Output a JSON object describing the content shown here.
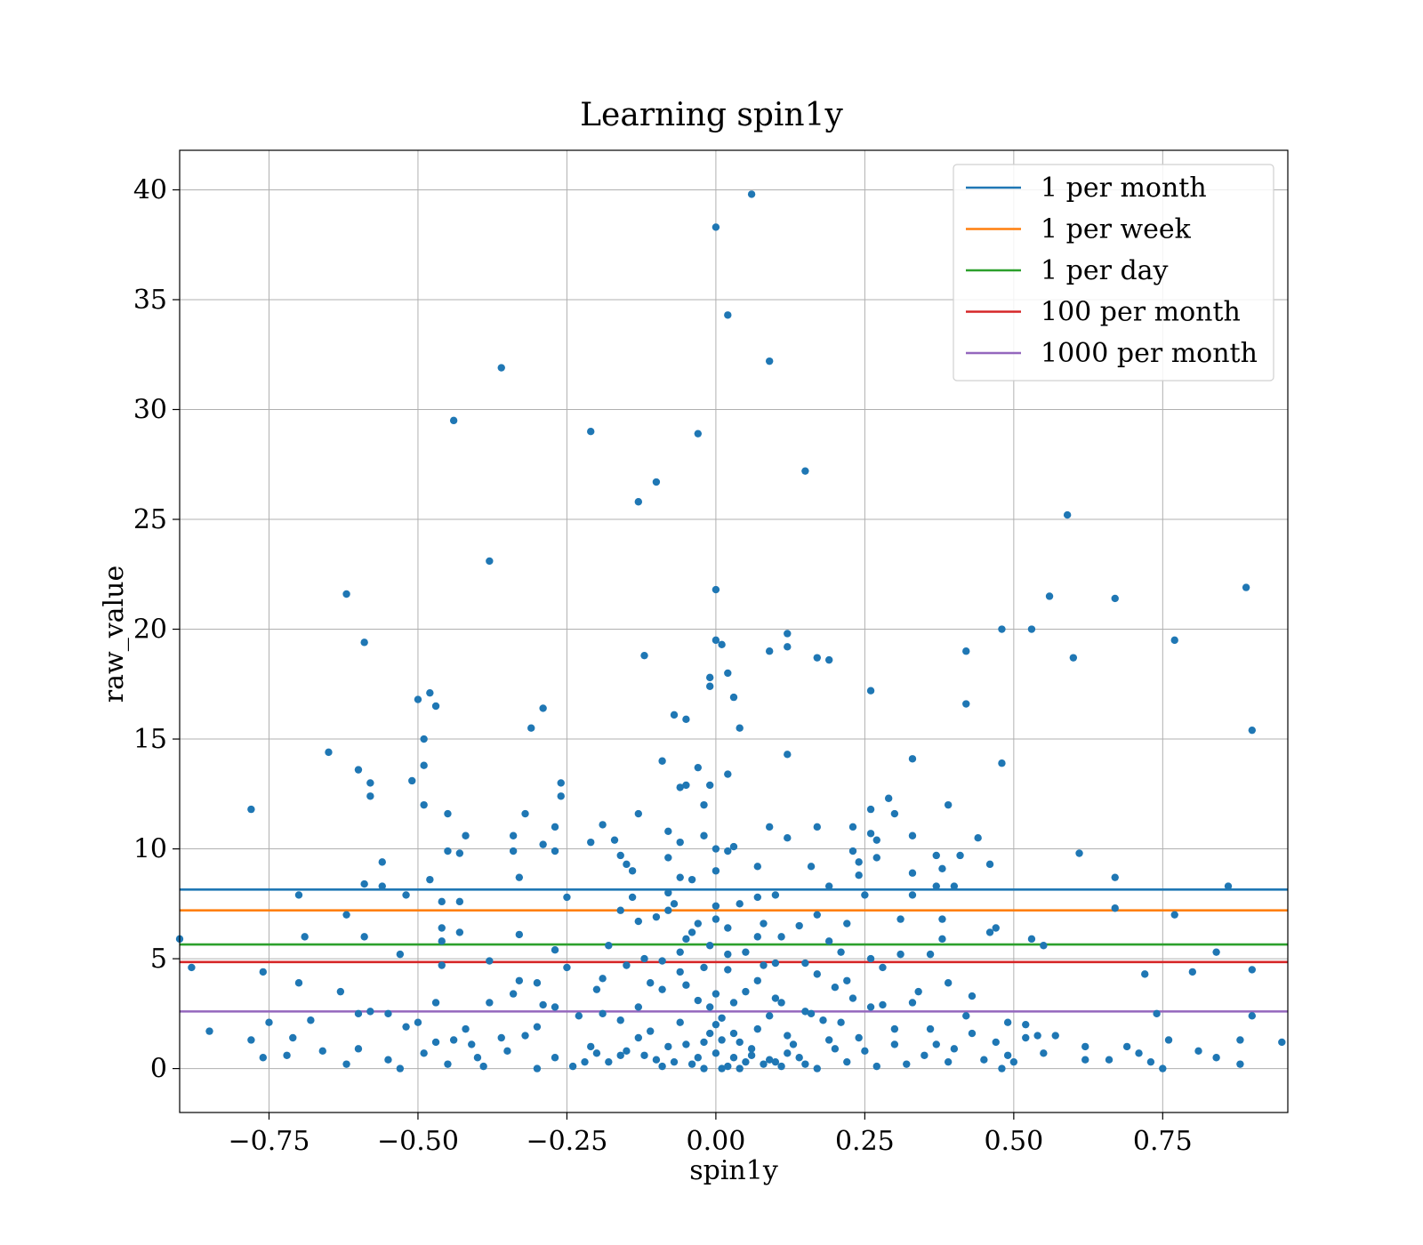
{
  "chart_data": {
    "type": "scatter",
    "title": "Learning spin1y",
    "xlabel": "spin1y",
    "ylabel": "raw_value",
    "xlim": [
      -0.9,
      0.96
    ],
    "ylim": [
      -2.0,
      41.8
    ],
    "xticks": [
      -0.75,
      -0.5,
      -0.25,
      0.0,
      0.25,
      0.5,
      0.75
    ],
    "xtick_labels": [
      "−0.75",
      "−0.50",
      "−0.25",
      "0.00",
      "0.25",
      "0.50",
      "0.75"
    ],
    "yticks": [
      0,
      5,
      10,
      15,
      20,
      25,
      30,
      35,
      40
    ],
    "ytick_labels": [
      "0",
      "5",
      "10",
      "15",
      "20",
      "25",
      "30",
      "35",
      "40"
    ],
    "grid": true,
    "legend_position": "top-right",
    "point_color": "#1f77b4",
    "hlines": [
      {
        "name": "1 per month",
        "y": 8.15,
        "color": "#1f77b4"
      },
      {
        "name": "1 per week",
        "y": 7.2,
        "color": "#ff7f0e"
      },
      {
        "name": "1 per day",
        "y": 5.65,
        "color": "#2ca02c"
      },
      {
        "name": "100 per month",
        "y": 4.85,
        "color": "#d62728"
      },
      {
        "name": "1000 per month",
        "y": 2.6,
        "color": "#9467bd"
      }
    ],
    "points": [
      [
        0.06,
        39.8
      ],
      [
        0.0,
        38.3
      ],
      [
        0.02,
        34.3
      ],
      [
        0.09,
        32.2
      ],
      [
        -0.36,
        31.9
      ],
      [
        -0.44,
        29.5
      ],
      [
        -0.21,
        29.0
      ],
      [
        -0.03,
        28.9
      ],
      [
        0.15,
        27.2
      ],
      [
        -0.1,
        26.7
      ],
      [
        -0.13,
        25.8
      ],
      [
        0.59,
        25.2
      ],
      [
        -0.38,
        23.1
      ],
      [
        0.89,
        21.9
      ],
      [
        0.0,
        21.8
      ],
      [
        -0.62,
        21.6
      ],
      [
        0.56,
        21.5
      ],
      [
        0.67,
        21.4
      ],
      [
        0.48,
        20.0
      ],
      [
        0.53,
        20.0
      ],
      [
        0.12,
        19.8
      ],
      [
        0.77,
        19.5
      ],
      [
        0.0,
        19.5
      ],
      [
        -0.59,
        19.4
      ],
      [
        0.01,
        19.3
      ],
      [
        0.12,
        19.2
      ],
      [
        0.09,
        19.0
      ],
      [
        0.42,
        19.0
      ],
      [
        -0.12,
        18.8
      ],
      [
        0.17,
        18.7
      ],
      [
        0.6,
        18.7
      ],
      [
        0.19,
        18.6
      ],
      [
        0.02,
        18.0
      ],
      [
        -0.01,
        17.8
      ],
      [
        -0.01,
        17.4
      ],
      [
        0.26,
        17.2
      ],
      [
        -0.48,
        17.1
      ],
      [
        0.03,
        16.9
      ],
      [
        -0.5,
        16.8
      ],
      [
        0.42,
        16.6
      ],
      [
        -0.47,
        16.5
      ],
      [
        -0.29,
        16.4
      ],
      [
        -0.07,
        16.1
      ],
      [
        -0.05,
        15.9
      ],
      [
        0.04,
        15.5
      ],
      [
        -0.31,
        15.5
      ],
      [
        0.9,
        15.4
      ],
      [
        -0.49,
        15.0
      ],
      [
        -0.65,
        14.4
      ],
      [
        0.12,
        14.3
      ],
      [
        0.33,
        14.1
      ],
      [
        -0.09,
        14.0
      ],
      [
        0.48,
        13.9
      ],
      [
        -0.49,
        13.8
      ],
      [
        -0.03,
        13.7
      ],
      [
        -0.6,
        13.6
      ],
      [
        0.02,
        13.4
      ],
      [
        -0.51,
        13.1
      ],
      [
        -0.58,
        13.0
      ],
      [
        -0.26,
        13.0
      ],
      [
        -0.05,
        12.9
      ],
      [
        -0.01,
        12.9
      ],
      [
        -0.06,
        12.8
      ],
      [
        -0.58,
        12.4
      ],
      [
        -0.26,
        12.4
      ],
      [
        0.29,
        12.3
      ],
      [
        0.39,
        12.0
      ],
      [
        -0.49,
        12.0
      ],
      [
        -0.02,
        12.0
      ],
      [
        0.26,
        11.8
      ],
      [
        -0.78,
        11.8
      ],
      [
        0.3,
        11.6
      ],
      [
        -0.45,
        11.6
      ],
      [
        -0.32,
        11.6
      ],
      [
        -0.13,
        11.6
      ],
      [
        -0.19,
        11.1
      ],
      [
        0.09,
        11.0
      ],
      [
        0.23,
        11.0
      ],
      [
        0.17,
        11.0
      ],
      [
        -0.27,
        11.0
      ],
      [
        -0.08,
        10.8
      ],
      [
        0.26,
        10.7
      ],
      [
        0.33,
        10.6
      ],
      [
        -0.42,
        10.6
      ],
      [
        -0.34,
        10.6
      ],
      [
        -0.02,
        10.6
      ],
      [
        0.12,
        10.5
      ],
      [
        0.44,
        10.5
      ],
      [
        0.27,
        10.4
      ],
      [
        -0.17,
        10.4
      ],
      [
        -0.06,
        10.3
      ],
      [
        -0.21,
        10.3
      ],
      [
        -0.29,
        10.2
      ],
      [
        0.0,
        10.0
      ],
      [
        0.03,
        10.1
      ],
      [
        -0.45,
        9.9
      ],
      [
        -0.27,
        9.9
      ],
      [
        0.23,
        9.9
      ],
      [
        -0.34,
        9.9
      ],
      [
        0.02,
        9.9
      ],
      [
        0.61,
        9.8
      ],
      [
        -0.43,
        9.8
      ],
      [
        0.37,
        9.7
      ],
      [
        -0.16,
        9.7
      ],
      [
        -0.08,
        9.6
      ],
      [
        0.27,
        9.6
      ],
      [
        0.41,
        9.7
      ],
      [
        -0.56,
        9.4
      ],
      [
        0.24,
        9.4
      ],
      [
        -0.15,
        9.3
      ],
      [
        0.07,
        9.2
      ],
      [
        0.16,
        9.2
      ],
      [
        0.46,
        9.3
      ],
      [
        0.38,
        9.1
      ],
      [
        -0.14,
        9.0
      ],
      [
        0.0,
        9.0
      ],
      [
        0.33,
        8.9
      ],
      [
        0.24,
        8.8
      ],
      [
        -0.06,
        8.7
      ],
      [
        -0.33,
        8.7
      ],
      [
        0.67,
        8.7
      ],
      [
        -0.48,
        8.6
      ],
      [
        -0.04,
        8.6
      ],
      [
        -0.59,
        8.4
      ],
      [
        0.19,
        8.3
      ],
      [
        0.37,
        8.3
      ],
      [
        0.86,
        8.3
      ],
      [
        -0.56,
        8.3
      ],
      [
        -0.08,
        8.0
      ],
      [
        0.4,
        8.3
      ],
      [
        -0.7,
        7.9
      ],
      [
        -0.52,
        7.9
      ],
      [
        0.33,
        7.9
      ],
      [
        0.25,
        7.9
      ],
      [
        -0.25,
        7.8
      ],
      [
        -0.14,
        7.8
      ],
      [
        -0.07,
        7.5
      ],
      [
        0.04,
        7.5
      ],
      [
        -0.43,
        7.6
      ],
      [
        -0.46,
        7.6
      ],
      [
        0.0,
        7.4
      ],
      [
        0.67,
        7.3
      ],
      [
        -0.16,
        7.2
      ],
      [
        0.17,
        7.0
      ],
      [
        0.77,
        7.0
      ],
      [
        -0.62,
        7.0
      ],
      [
        -0.1,
        6.9
      ],
      [
        0.0,
        6.8
      ],
      [
        0.31,
        6.8
      ],
      [
        0.38,
        6.8
      ],
      [
        0.08,
        6.6
      ],
      [
        -0.13,
        6.7
      ],
      [
        0.22,
        6.6
      ],
      [
        0.14,
        6.5
      ],
      [
        0.47,
        6.4
      ],
      [
        -0.46,
        6.4
      ],
      [
        -0.43,
        6.2
      ],
      [
        0.46,
        6.2
      ],
      [
        -0.69,
        6.0
      ],
      [
        -0.59,
        6.0
      ],
      [
        -0.33,
        6.1
      ],
      [
        -0.04,
        6.2
      ],
      [
        0.07,
        6.0
      ],
      [
        0.11,
        6.0
      ],
      [
        0.19,
        5.8
      ],
      [
        0.38,
        5.9
      ],
      [
        0.53,
        5.9
      ],
      [
        -0.46,
        5.8
      ],
      [
        -0.9,
        5.9
      ],
      [
        -0.18,
        5.6
      ],
      [
        -0.01,
        5.6
      ],
      [
        0.55,
        5.6
      ],
      [
        0.21,
        5.3
      ],
      [
        -0.12,
        5.0
      ],
      [
        0.84,
        5.3
      ],
      [
        -0.53,
        5.2
      ],
      [
        0.36,
        5.2
      ],
      [
        0.31,
        5.2
      ],
      [
        0.02,
        5.2
      ],
      [
        -0.06,
        5.3
      ],
      [
        -0.38,
        4.9
      ],
      [
        -0.25,
        4.6
      ],
      [
        -0.88,
        4.6
      ],
      [
        0.1,
        4.8
      ],
      [
        0.28,
        4.6
      ],
      [
        -0.46,
        4.7
      ],
      [
        -0.76,
        4.4
      ],
      [
        0.8,
        4.4
      ],
      [
        -0.06,
        4.4
      ],
      [
        0.17,
        4.3
      ],
      [
        0.72,
        4.3
      ],
      [
        0.9,
        4.5
      ],
      [
        -0.19,
        4.1
      ],
      [
        -0.33,
        4.0
      ],
      [
        0.07,
        4.0
      ],
      [
        0.22,
        4.0
      ],
      [
        -0.7,
        3.9
      ],
      [
        -0.63,
        3.5
      ],
      [
        -0.09,
        3.6
      ],
      [
        0.2,
        3.7
      ],
      [
        0.34,
        3.5
      ],
      [
        0.43,
        3.3
      ],
      [
        -0.34,
        3.4
      ],
      [
        0.03,
        3.0
      ],
      [
        -0.03,
        3.1
      ],
      [
        0.11,
        3.0
      ],
      [
        -0.47,
        3.0
      ],
      [
        -0.38,
        3.0
      ],
      [
        0.26,
        2.8
      ],
      [
        0.28,
        2.9
      ],
      [
        -0.29,
        2.9
      ],
      [
        -0.27,
        2.8
      ],
      [
        -0.13,
        2.8
      ],
      [
        0.15,
        2.6
      ],
      [
        -0.58,
        2.6
      ],
      [
        -0.55,
        2.5
      ],
      [
        0.09,
        2.4
      ],
      [
        0.42,
        2.4
      ],
      [
        -0.19,
        2.5
      ],
      [
        0.9,
        2.4
      ],
      [
        0.74,
        2.5
      ],
      [
        -0.6,
        2.5
      ],
      [
        -0.68,
        2.2
      ],
      [
        -0.75,
        2.1
      ],
      [
        0.01,
        2.3
      ],
      [
        0.18,
        2.2
      ],
      [
        -0.5,
        2.1
      ],
      [
        0.49,
        2.1
      ],
      [
        0.52,
        2.0
      ],
      [
        -0.42,
        1.8
      ],
      [
        0.36,
        1.8
      ],
      [
        -0.85,
        1.7
      ],
      [
        -0.01,
        1.6
      ],
      [
        0.12,
        1.5
      ],
      [
        -0.32,
        1.5
      ],
      [
        0.54,
        1.5
      ],
      [
        0.57,
        1.5
      ],
      [
        -0.78,
        1.3
      ],
      [
        -0.71,
        1.4
      ],
      [
        0.3,
        1.1
      ],
      [
        -0.44,
        1.3
      ],
      [
        0.76,
        1.3
      ],
      [
        0.88,
        1.3
      ],
      [
        0.95,
        1.2
      ],
      [
        0.62,
        1.0
      ],
      [
        0.69,
        1.0
      ],
      [
        -0.6,
        0.9
      ],
      [
        -0.66,
        0.8
      ],
      [
        0.2,
        0.9
      ],
      [
        -0.49,
        0.7
      ],
      [
        0.81,
        0.8
      ],
      [
        -0.72,
        0.6
      ],
      [
        0.49,
        0.6
      ],
      [
        -0.16,
        0.6
      ],
      [
        -0.03,
        0.5
      ],
      [
        0.06,
        0.6
      ],
      [
        0.14,
        0.5
      ],
      [
        0.71,
        0.7
      ],
      [
        0.84,
        0.5
      ],
      [
        -0.76,
        0.5
      ],
      [
        0.62,
        0.4
      ],
      [
        0.66,
        0.4
      ],
      [
        -0.22,
        0.3
      ],
      [
        0.1,
        0.3
      ],
      [
        0.39,
        0.3
      ],
      [
        -0.62,
        0.2
      ],
      [
        0.73,
        0.3
      ],
      [
        0.88,
        0.2
      ],
      [
        -0.39,
        0.1
      ],
      [
        0.27,
        0.1
      ],
      [
        -0.53,
        0.0
      ],
      [
        0.48,
        0.0
      ],
      [
        0.75,
        0.0
      ],
      [
        -0.3,
        0.0
      ],
      [
        0.17,
        0.0
      ],
      [
        -0.08,
        1.0
      ],
      [
        -0.05,
        1.1
      ],
      [
        -0.02,
        1.2
      ],
      [
        0.01,
        1.3
      ],
      [
        0.04,
        1.2
      ],
      [
        -0.1,
        0.4
      ],
      [
        -0.07,
        0.3
      ],
      [
        -0.04,
        0.2
      ],
      [
        0.02,
        0.1
      ],
      [
        0.05,
        0.3
      ],
      [
        0.08,
        0.2
      ],
      [
        -0.15,
        0.8
      ],
      [
        -0.12,
        0.6
      ],
      [
        0.0,
        0.7
      ],
      [
        0.03,
        0.5
      ],
      [
        0.06,
        0.9
      ],
      [
        0.09,
        0.4
      ],
      [
        -0.18,
        0.3
      ],
      [
        0.12,
        0.7
      ],
      [
        0.15,
        0.2
      ],
      [
        -0.24,
        0.1
      ],
      [
        -0.2,
        0.7
      ],
      [
        0.22,
        0.3
      ],
      [
        0.25,
        0.8
      ],
      [
        -0.27,
        0.5
      ],
      [
        0.32,
        0.2
      ],
      [
        0.35,
        0.6
      ],
      [
        -0.35,
        0.8
      ],
      [
        -0.4,
        0.5
      ],
      [
        0.4,
        0.9
      ],
      [
        0.45,
        0.4
      ],
      [
        -0.45,
        0.2
      ],
      [
        0.5,
        0.3
      ],
      [
        0.55,
        0.7
      ],
      [
        -0.55,
        0.4
      ],
      [
        -0.11,
        1.7
      ],
      [
        0.07,
        1.8
      ],
      [
        -0.06,
        2.1
      ],
      [
        0.0,
        2.0
      ],
      [
        0.03,
        1.6
      ],
      [
        -0.02,
        0.0
      ],
      [
        0.01,
        0.0
      ],
      [
        0.04,
        0.0
      ],
      [
        -0.09,
        0.1
      ],
      [
        0.11,
        0.1
      ],
      [
        0.13,
        1.1
      ],
      [
        -0.13,
        1.4
      ],
      [
        0.19,
        1.3
      ],
      [
        -0.21,
        1.0
      ],
      [
        0.24,
        1.4
      ],
      [
        -0.3,
        1.9
      ],
      [
        0.3,
        1.8
      ],
      [
        -0.36,
        1.4
      ],
      [
        0.37,
        1.1
      ],
      [
        -0.41,
        1.1
      ],
      [
        0.43,
        1.6
      ],
      [
        0.47,
        1.2
      ],
      [
        -0.47,
        1.2
      ],
      [
        0.52,
        1.4
      ],
      [
        -0.52,
        1.9
      ],
      [
        -0.23,
        2.4
      ],
      [
        0.21,
        2.1
      ],
      [
        -0.16,
        2.2
      ],
      [
        0.16,
        2.5
      ],
      [
        -0.01,
        2.8
      ],
      [
        0.0,
        3.4
      ],
      [
        -0.05,
        3.8
      ],
      [
        0.05,
        3.5
      ],
      [
        -0.11,
        3.9
      ],
      [
        0.1,
        3.2
      ],
      [
        -0.2,
        3.6
      ],
      [
        0.23,
        3.2
      ],
      [
        -0.3,
        3.9
      ],
      [
        0.33,
        3.0
      ],
      [
        0.39,
        3.9
      ],
      [
        -0.02,
        4.6
      ],
      [
        0.02,
        4.5
      ],
      [
        -0.09,
        4.9
      ],
      [
        0.08,
        4.7
      ],
      [
        -0.15,
        4.7
      ],
      [
        0.15,
        4.8
      ],
      [
        0.26,
        5.0
      ],
      [
        -0.27,
        5.4
      ],
      [
        0.05,
        5.3
      ],
      [
        -0.05,
        5.9
      ],
      [
        0.02,
        6.4
      ],
      [
        -0.03,
        6.6
      ],
      [
        -0.08,
        7.2
      ],
      [
        0.07,
        7.8
      ],
      [
        0.1,
        7.9
      ]
    ]
  }
}
